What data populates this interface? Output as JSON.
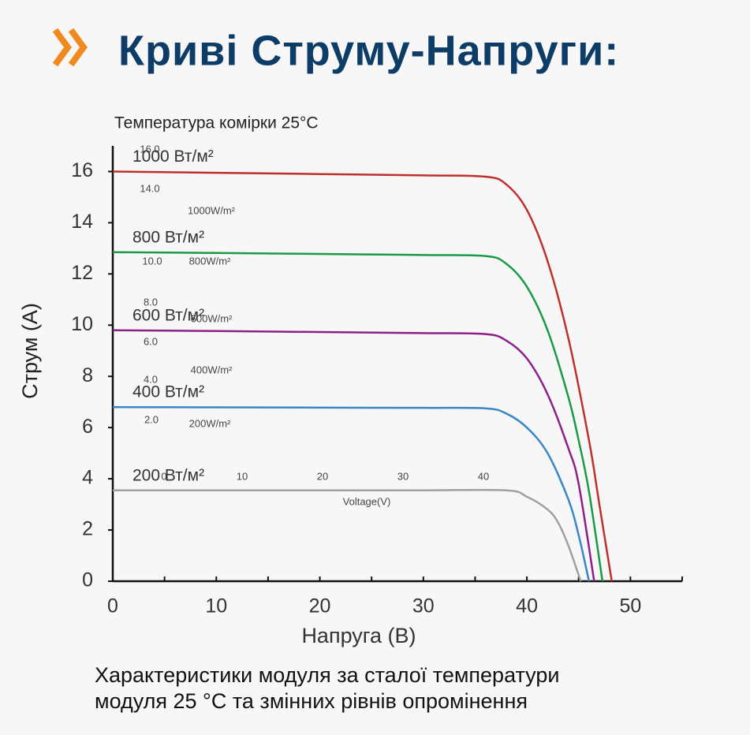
{
  "chart_data": {
    "type": "line",
    "title": "Криві Струму-Напруги:",
    "subtitle": "Температура комірки  25°C",
    "x_label": "Напруга (В)",
    "y_label": "Струм (A)",
    "caption": [
      "Характеристики модуля за сталої температури",
      "модуля 25 °C та змінних рівнів опромінення"
    ],
    "xlim": [
      0,
      55
    ],
    "ylim": [
      0,
      17
    ],
    "xticks": [
      0,
      10,
      20,
      30,
      40,
      50
    ],
    "xminor_ticks": [
      5,
      15,
      25,
      35,
      45,
      55
    ],
    "yticks": [
      0,
      2,
      4,
      6,
      8,
      10,
      12,
      14,
      16
    ],
    "series": [
      {
        "name": "1000 Вт/м²",
        "color": "#c0302a",
        "x": [
          0,
          10,
          20,
          30,
          36,
          38,
          40,
          42,
          44,
          46,
          47,
          48.2
        ],
        "values": [
          16.0,
          15.95,
          15.9,
          15.85,
          15.8,
          15.5,
          14.5,
          12.5,
          9.5,
          5.5,
          3,
          0
        ]
      },
      {
        "name": "800 Вт/м²",
        "color": "#1a9a47",
        "x": [
          0,
          10,
          20,
          30,
          36,
          38,
          40,
          42,
          44,
          45,
          46,
          47.3
        ],
        "values": [
          12.85,
          12.82,
          12.78,
          12.74,
          12.7,
          12.4,
          11.5,
          9.8,
          7.2,
          5.5,
          3.5,
          0
        ]
      },
      {
        "name": "600 Вт/м²",
        "color": "#8e1f8a",
        "x": [
          0,
          10,
          20,
          30,
          36,
          38,
          40,
          42,
          44,
          45,
          46.5
        ],
        "values": [
          9.8,
          9.77,
          9.73,
          9.69,
          9.65,
          9.4,
          8.7,
          7.3,
          5.2,
          3.8,
          0
        ]
      },
      {
        "name": "400 Вт/м²",
        "color": "#3a86c8",
        "x": [
          0,
          10,
          20,
          30,
          36,
          38,
          40,
          42,
          44,
          45,
          46
        ],
        "values": [
          6.8,
          6.79,
          6.78,
          6.77,
          6.75,
          6.55,
          6.0,
          5.0,
          3.2,
          1.8,
          0
        ]
      },
      {
        "name": "200 Вт/м²",
        "color": "#a0a0a0",
        "x": [
          0,
          10,
          20,
          30,
          38,
          40,
          42,
          43,
          44,
          45.2
        ],
        "values": [
          3.55,
          3.55,
          3.55,
          3.55,
          3.55,
          3.3,
          2.8,
          2.3,
          1.4,
          0
        ]
      }
    ],
    "annotations": [
      "16.0",
      "14.0",
      "1000W/m²",
      "10.0",
      "800W/m²",
      "8.0",
      "600W/m²",
      "6.0",
      "400W/m²",
      "4.0",
      "2.0",
      "200W/m²",
      "0",
      "10",
      "20",
      "30",
      "40",
      "Voltage(V)"
    ]
  }
}
